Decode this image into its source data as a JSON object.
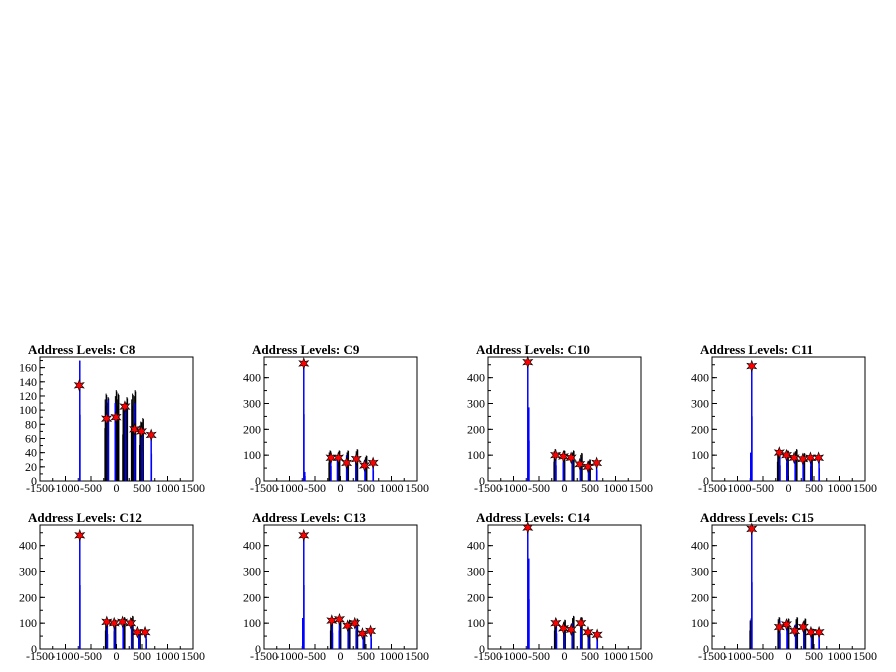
{
  "chart_data": [
    {
      "type": "histogram",
      "title": "Address Levels: C8",
      "ylim": [
        0,
        175
      ],
      "yticks": [
        0,
        20,
        40,
        60,
        80,
        100,
        120,
        140,
        160
      ],
      "xlim": [
        -1500,
        1500
      ],
      "xticks": [
        -1500,
        -1000,
        -500,
        0,
        500,
        1000,
        1500
      ],
      "blue_peaks": [
        [
          -720,
          170
        ],
        [
          -165,
          115
        ],
        [
          -25,
          110
        ],
        [
          180,
          105
        ],
        [
          355,
          110
        ],
        [
          500,
          75
        ],
        [
          680,
          70
        ]
      ],
      "black_peaks": [
        [
          -210,
          125
        ],
        [
          -170,
          120
        ],
        [
          -10,
          130
        ],
        [
          30,
          125
        ],
        [
          140,
          110
        ],
        [
          200,
          120
        ],
        [
          310,
          125
        ],
        [
          360,
          130
        ],
        [
          470,
          85
        ],
        [
          510,
          90
        ]
      ],
      "markers": [
        [
          -730,
          135
        ],
        [
          -195,
          88
        ],
        [
          -10,
          90
        ],
        [
          165,
          105
        ],
        [
          355,
          73
        ],
        [
          490,
          70
        ],
        [
          680,
          65
        ]
      ]
    },
    {
      "type": "histogram",
      "title": "Address Levels: C9",
      "ylim": [
        0,
        480
      ],
      "yticks": [
        0,
        100,
        200,
        300,
        400
      ],
      "xlim": [
        -1500,
        1500
      ],
      "xticks": [
        -1500,
        -1000,
        -500,
        0,
        500,
        1000,
        1500
      ],
      "blue_peaks": [
        [
          -720,
          470
        ],
        [
          -700,
          35
        ],
        [
          -190,
          105
        ],
        [
          -60,
          100
        ],
        [
          120,
          100
        ],
        [
          300,
          95
        ],
        [
          480,
          80
        ],
        [
          640,
          75
        ]
      ],
      "black_peaks": [
        [
          -210,
          120
        ],
        [
          -30,
          120
        ],
        [
          140,
          120
        ],
        [
          320,
          125
        ],
        [
          500,
          100
        ]
      ],
      "markers": [
        [
          -720,
          455
        ],
        [
          -185,
          90
        ],
        [
          -40,
          90
        ],
        [
          120,
          70
        ],
        [
          310,
          85
        ],
        [
          470,
          60
        ],
        [
          640,
          70
        ]
      ]
    },
    {
      "type": "histogram",
      "title": "Address Levels: C10",
      "ylim": [
        0,
        480
      ],
      "yticks": [
        0,
        100,
        200,
        300,
        400
      ],
      "xlim": [
        -1500,
        1500
      ],
      "xticks": [
        -1500,
        -1000,
        -500,
        0,
        500,
        1000,
        1500
      ],
      "blue_peaks": [
        [
          -720,
          470
        ],
        [
          -700,
          285
        ],
        [
          -170,
          110
        ],
        [
          -20,
          100
        ],
        [
          150,
          95
        ],
        [
          310,
          85
        ],
        [
          470,
          70
        ],
        [
          630,
          75
        ]
      ],
      "black_peaks": [
        [
          -190,
          125
        ],
        [
          -10,
          120
        ],
        [
          170,
          120
        ],
        [
          330,
          110
        ],
        [
          490,
          85
        ]
      ],
      "markers": [
        [
          -720,
          460
        ],
        [
          -175,
          100
        ],
        [
          -20,
          95
        ],
        [
          130,
          90
        ],
        [
          300,
          65
        ],
        [
          460,
          55
        ],
        [
          630,
          70
        ]
      ]
    },
    {
      "type": "histogram",
      "title": "Address Levels: C11",
      "ylim": [
        0,
        480
      ],
      "yticks": [
        0,
        100,
        200,
        300,
        400
      ],
      "xlim": [
        -1500,
        1500
      ],
      "xticks": [
        -1500,
        -1000,
        -500,
        0,
        500,
        1000,
        1500
      ],
      "blue_peaks": [
        [
          -720,
          455
        ],
        [
          -740,
          110
        ],
        [
          -170,
          110
        ],
        [
          -30,
          105
        ],
        [
          130,
          100
        ],
        [
          290,
          95
        ],
        [
          440,
          90
        ],
        [
          600,
          90
        ]
      ],
      "black_peaks": [
        [
          -200,
          125
        ],
        [
          -20,
          120
        ],
        [
          150,
          125
        ],
        [
          300,
          110
        ],
        [
          450,
          95
        ]
      ],
      "markers": [
        [
          -720,
          445
        ],
        [
          -180,
          110
        ],
        [
          -40,
          100
        ],
        [
          110,
          90
        ],
        [
          280,
          85
        ],
        [
          430,
          90
        ],
        [
          590,
          90
        ]
      ]
    },
    {
      "type": "histogram",
      "title": "Address Levels: C12",
      "ylim": [
        0,
        480
      ],
      "yticks": [
        0,
        100,
        200,
        300,
        400
      ],
      "xlim": [
        -1500,
        1500
      ],
      "xticks": [
        -1500,
        -1000,
        -500,
        0,
        500,
        1000,
        1500
      ],
      "blue_peaks": [
        [
          -720,
          450
        ],
        [
          -180,
          105
        ],
        [
          -40,
          100
        ],
        [
          130,
          100
        ],
        [
          300,
          110
        ],
        [
          440,
          65
        ],
        [
          580,
          70
        ]
      ],
      "black_peaks": [
        [
          -200,
          120
        ],
        [
          -30,
          115
        ],
        [
          150,
          125
        ],
        [
          310,
          130
        ],
        [
          450,
          75
        ]
      ],
      "markers": [
        [
          -720,
          440
        ],
        [
          -190,
          105
        ],
        [
          -45,
          100
        ],
        [
          120,
          105
        ],
        [
          280,
          100
        ],
        [
          410,
          65
        ],
        [
          560,
          65
        ]
      ]
    },
    {
      "type": "histogram",
      "title": "Address Levels: C13",
      "ylim": [
        0,
        480
      ],
      "yticks": [
        0,
        100,
        200,
        300,
        400
      ],
      "xlim": [
        -1500,
        1500
      ],
      "xticks": [
        -1500,
        -1000,
        -500,
        0,
        500,
        1000,
        1500
      ],
      "blue_peaks": [
        [
          -720,
          450
        ],
        [
          -740,
          120
        ],
        [
          -160,
          115
        ],
        [
          -20,
          110
        ],
        [
          150,
          100
        ],
        [
          310,
          90
        ],
        [
          450,
          60
        ],
        [
          600,
          75
        ]
      ],
      "black_peaks": [
        [
          -180,
          120
        ],
        [
          -10,
          120
        ],
        [
          170,
          115
        ],
        [
          320,
          120
        ],
        [
          460,
          65
        ]
      ],
      "markers": [
        [
          -720,
          440
        ],
        [
          -170,
          110
        ],
        [
          -20,
          115
        ],
        [
          140,
          90
        ],
        [
          280,
          100
        ],
        [
          430,
          60
        ],
        [
          590,
          70
        ]
      ]
    },
    {
      "type": "histogram",
      "title": "Address Levels: C14",
      "ylim": [
        0,
        480
      ],
      "yticks": [
        0,
        100,
        200,
        300,
        400
      ],
      "xlim": [
        -1500,
        1500
      ],
      "xticks": [
        -1500,
        -1000,
        -500,
        0,
        500,
        1000,
        1500
      ],
      "blue_peaks": [
        [
          -720,
          480
        ],
        [
          -700,
          350
        ],
        [
          -160,
          110
        ],
        [
          -10,
          90
        ],
        [
          150,
          100
        ],
        [
          320,
          115
        ],
        [
          470,
          70
        ],
        [
          640,
          65
        ]
      ],
      "black_peaks": [
        [
          -180,
          120
        ],
        [
          0,
          115
        ],
        [
          170,
          130
        ],
        [
          330,
          125
        ],
        [
          480,
          75
        ]
      ],
      "markers": [
        [
          -720,
          470
        ],
        [
          -170,
          100
        ],
        [
          -20,
          80
        ],
        [
          130,
          75
        ],
        [
          320,
          100
        ],
        [
          460,
          65
        ],
        [
          640,
          55
        ]
      ]
    },
    {
      "type": "histogram",
      "title": "Address Levels: C15",
      "ylim": [
        0,
        480
      ],
      "yticks": [
        0,
        100,
        200,
        300,
        400
      ],
      "xlim": [
        -1500,
        1500
      ],
      "xticks": [
        -1500,
        -1000,
        -500,
        0,
        500,
        1000,
        1500
      ],
      "blue_peaks": [
        [
          -720,
          470
        ],
        [
          -170,
          110
        ],
        [
          -30,
          100
        ],
        [
          140,
          95
        ],
        [
          300,
          95
        ],
        [
          450,
          70
        ],
        [
          600,
          65
        ]
      ],
      "black_peaks": [
        [
          -740,
          120
        ],
        [
          -190,
          125
        ],
        [
          -10,
          120
        ],
        [
          160,
          125
        ],
        [
          320,
          120
        ],
        [
          470,
          80
        ]
      ],
      "markers": [
        [
          -720,
          465
        ],
        [
          -180,
          85
        ],
        [
          -40,
          95
        ],
        [
          120,
          70
        ],
        [
          290,
          85
        ],
        [
          440,
          65
        ],
        [
          600,
          65
        ]
      ]
    }
  ]
}
